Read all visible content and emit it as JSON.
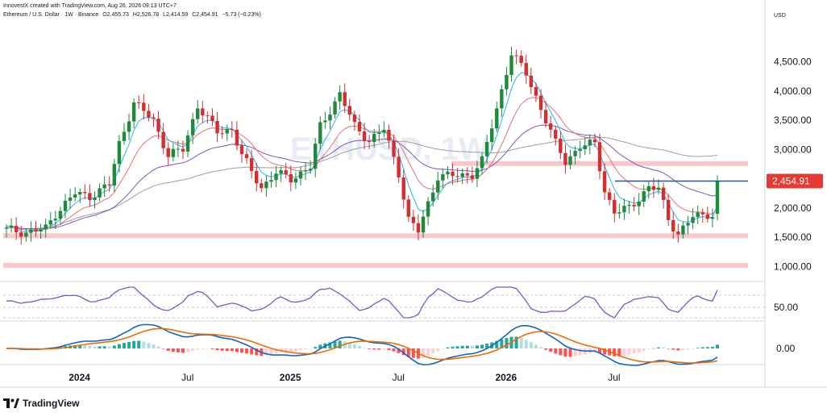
{
  "header": {
    "credit": "InnovestX created with TradingView.com, Aug 26, 2026 09:13 UTC+7",
    "symbol": "Ethereum / U.S. Dollar · 1W · Binance",
    "open": "O2,455.73",
    "high": "H2,526.78",
    "low": "L2,414.59",
    "close": "C2,454.91",
    "change": "−5.73 (−0.23%)"
  },
  "currency": "USD",
  "watermark": "ETHUSD, 1W",
  "branding": "TradingView",
  "colors": {
    "up": "#26a69a",
    "down": "#ef5350",
    "bar_up": "#1e8a3a",
    "bar_down": "#d32f2f",
    "ema_fast": "#29b6f6",
    "ema_mid": "#e57373",
    "ema_slow": "#7e57c2",
    "sma_long": "#9e9e9e",
    "rsi": "#7e57c2",
    "macd": "#1565c0",
    "signal": "#ef6c00",
    "level_zone": "#f8c8cc",
    "price_label": "#e53935",
    "level_line": "#1e5799"
  },
  "chart_data": {
    "type": "candlestick",
    "timeframe": "1W",
    "x_labels": [
      "2024",
      "Jul",
      "2025",
      "Jul",
      "2026",
      "Jul"
    ],
    "ylim": [
      950,
      4950
    ],
    "y_ticks": [
      "4,500.00",
      "4,000.00",
      "3,500.00",
      "3,000.00",
      "2,000.00",
      "1,500.00",
      "1,000.00"
    ],
    "last_price": "2,454.91",
    "horizontal_levels": [
      1525,
      1020,
      2760,
      2460
    ],
    "anchors": [
      [
        0,
        1630
      ],
      [
        4,
        1580
      ],
      [
        8,
        1650
      ],
      [
        10,
        1900
      ],
      [
        14,
        2250
      ],
      [
        17,
        2200
      ],
      [
        21,
        2400
      ],
      [
        23,
        3100
      ],
      [
        26,
        3800
      ],
      [
        30,
        3500
      ],
      [
        33,
        2900
      ],
      [
        36,
        3000
      ],
      [
        39,
        3750
      ],
      [
        43,
        3300
      ],
      [
        46,
        3350
      ],
      [
        48,
        2900
      ],
      [
        52,
        2350
      ],
      [
        55,
        2600
      ],
      [
        58,
        2500
      ],
      [
        62,
        2700
      ],
      [
        64,
        3400
      ],
      [
        68,
        3950
      ],
      [
        71,
        3400
      ],
      [
        74,
        3150
      ],
      [
        77,
        3350
      ],
      [
        80,
        2600
      ],
      [
        82,
        1800
      ],
      [
        84,
        1600
      ],
      [
        88,
        2550
      ],
      [
        92,
        2550
      ],
      [
        95,
        2580
      ],
      [
        97,
        2800
      ],
      [
        100,
        3700
      ],
      [
        103,
        4650
      ],
      [
        106,
        4300
      ],
      [
        109,
        3700
      ],
      [
        112,
        3100
      ],
      [
        114,
        2800
      ],
      [
        117,
        3050
      ],
      [
        120,
        3100
      ],
      [
        122,
        2300
      ],
      [
        124,
        1920
      ],
      [
        127,
        2000
      ],
      [
        131,
        2350
      ],
      [
        133,
        2320
      ],
      [
        135,
        1820
      ],
      [
        137,
        1550
      ],
      [
        140,
        1850
      ],
      [
        143,
        1900
      ],
      [
        144,
        1880
      ],
      [
        145,
        2455
      ]
    ],
    "rsi": {
      "tick": "50.00"
    },
    "macd": {
      "tick": "0.00"
    }
  }
}
